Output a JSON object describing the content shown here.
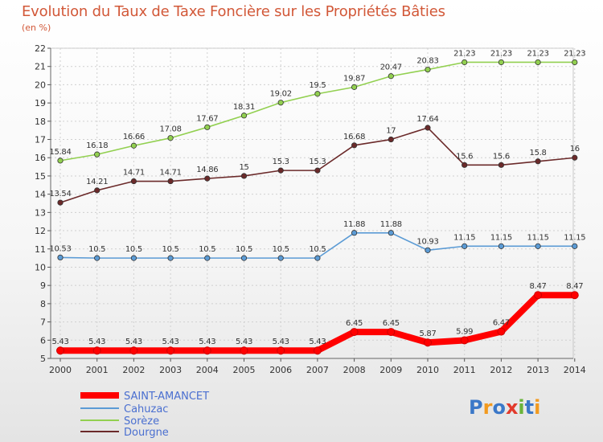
{
  "chart_data": {
    "type": "line",
    "title": "Evolution du Taux de Taxe Foncière sur les Propriétés Bâties",
    "subtitle": "(en %)",
    "x": [
      "2000",
      "2001",
      "2002",
      "2003",
      "2004",
      "2005",
      "2006",
      "2007",
      "2008",
      "2009",
      "2010",
      "2011",
      "2012",
      "2013",
      "2014"
    ],
    "ylim": [
      5,
      22
    ],
    "yticks": [
      "5",
      "6",
      "7",
      "8",
      "9",
      "10",
      "11",
      "12",
      "13",
      "14",
      "15",
      "16",
      "17",
      "18",
      "19",
      "20",
      "21",
      "22"
    ],
    "grid": true,
    "legend_position": "bottom-left",
    "series": [
      {
        "name": "SAINT-AMANCET",
        "color": "#ff0000",
        "values": [
          5.43,
          5.43,
          5.43,
          5.43,
          5.43,
          5.43,
          5.43,
          5.43,
          6.45,
          6.45,
          5.87,
          5.99,
          6.47,
          8.47,
          8.47
        ],
        "labels": [
          "5.43",
          "5.43",
          "5.43",
          "5.43",
          "5.43",
          "5.43",
          "5.43",
          "5.43",
          "6.45",
          "6.45",
          "5.87",
          "5.99",
          "6.47",
          "8.47",
          "8.47"
        ]
      },
      {
        "name": "Cahuzac",
        "color": "#5b9bd5",
        "values": [
          10.53,
          10.5,
          10.5,
          10.5,
          10.5,
          10.5,
          10.5,
          10.5,
          11.88,
          11.88,
          10.93,
          11.15,
          11.15,
          11.15,
          11.15
        ],
        "labels": [
          "10.53",
          "10.5",
          "10.5",
          "10.5",
          "10.5",
          "10.5",
          "10.5",
          "10.5",
          "11.88",
          "11.88",
          "10.93",
          "11.15",
          "11.15",
          "11.15",
          "11.15"
        ]
      },
      {
        "name": "Sorèze",
        "color": "#92d050",
        "values": [
          15.84,
          16.18,
          16.66,
          17.08,
          17.67,
          18.31,
          19.02,
          19.5,
          19.87,
          20.47,
          20.83,
          21.23,
          21.23,
          21.23,
          21.23
        ],
        "labels": [
          "15.84",
          "16.18",
          "16.66",
          "17.08",
          "17.67",
          "18.31",
          "19.02",
          "19.5",
          "19.87",
          "20.47",
          "20.83",
          "21.23",
          "21.23",
          "21.23",
          "21.23"
        ]
      },
      {
        "name": "Dourgne",
        "color": "#6b2a2a",
        "values": [
          13.54,
          14.21,
          14.71,
          14.71,
          14.86,
          15,
          15.3,
          15.3,
          16.68,
          17,
          17.64,
          15.6,
          15.6,
          15.8,
          16
        ],
        "labels": [
          "13.54",
          "14.21",
          "14.71",
          "14.71",
          "14.86",
          "15",
          "15.3",
          "15.3",
          "16.68",
          "17",
          "17.64",
          "15.6",
          "15.6",
          "15.8",
          "16"
        ]
      }
    ],
    "logo": "Proxiti"
  }
}
